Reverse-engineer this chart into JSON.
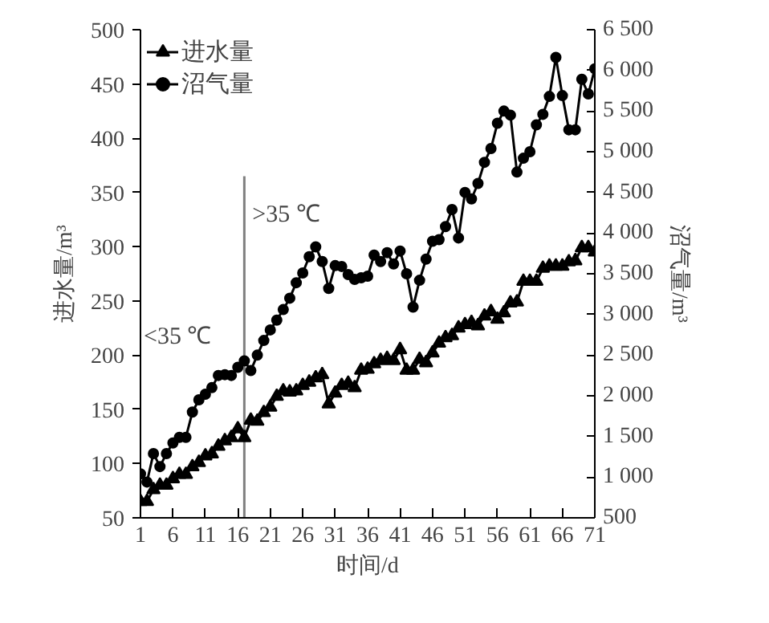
{
  "chart_data": {
    "type": "line",
    "xlabel": "时间/d",
    "ylabel": "进水量/m³",
    "y2label": "沼气量/m³",
    "x": [
      1,
      2,
      3,
      4,
      5,
      6,
      7,
      8,
      9,
      10,
      11,
      12,
      13,
      14,
      15,
      16,
      17,
      18,
      19,
      20,
      21,
      22,
      23,
      24,
      25,
      26,
      27,
      28,
      29,
      30,
      31,
      32,
      33,
      34,
      35,
      36,
      37,
      38,
      39,
      40,
      41,
      42,
      43,
      44,
      45,
      46,
      47,
      48,
      49,
      50,
      51,
      52,
      53,
      54,
      55,
      56,
      57,
      58,
      59,
      60,
      61,
      62,
      63,
      64,
      65,
      66,
      67,
      68,
      69,
      70,
      71
    ],
    "series": [
      {
        "name": "进水量",
        "color": "#000000",
        "marker": "triangle",
        "values": [
          65,
          65,
          76,
          80,
          80,
          86,
          90,
          90,
          97,
          101,
          107,
          109,
          116,
          121,
          124,
          132,
          124,
          140,
          139,
          147,
          152,
          162,
          167,
          166,
          167,
          172,
          175,
          179,
          182,
          155,
          165,
          172,
          174,
          170,
          186,
          187,
          192,
          195,
          197,
          195,
          205,
          186,
          186,
          196,
          193,
          202,
          211,
          216,
          218,
          225,
          228,
          230,
          227,
          236,
          240,
          233,
          239,
          248,
          249,
          268,
          268,
          268,
          280,
          282,
          282,
          282,
          286,
          287,
          299,
          299,
          295
        ]
      },
      {
        "name": "沼气量",
        "color": "#000000",
        "marker": "circle",
        "axis": "y2",
        "values": [
          1040,
          940,
          1290,
          1130,
          1290,
          1420,
          1490,
          1490,
          1800,
          1950,
          2020,
          2100,
          2250,
          2260,
          2250,
          2350,
          2430,
          2310,
          2500,
          2680,
          2810,
          2930,
          3060,
          3200,
          3390,
          3510,
          3710,
          3830,
          3650,
          3320,
          3600,
          3590,
          3490,
          3430,
          3450,
          3470,
          3730,
          3650,
          3760,
          3620,
          3780,
          3500,
          3090,
          3420,
          3680,
          3900,
          3920,
          4080,
          4290,
          3940,
          4500,
          4420,
          4610,
          4870,
          5040,
          5350,
          5500,
          5450,
          4750,
          4920,
          5000,
          5330,
          5460,
          5680,
          6160,
          5690,
          5270,
          5270,
          5890,
          5710,
          6020
        ]
      }
    ],
    "xlim": [
      1,
      71
    ],
    "xticks": [
      1,
      6,
      11,
      16,
      21,
      26,
      31,
      36,
      41,
      46,
      51,
      56,
      61,
      66,
      71
    ],
    "ylim": [
      50,
      500
    ],
    "yticks": [
      50,
      100,
      150,
      200,
      250,
      300,
      350,
      400,
      450,
      500
    ],
    "y2lim": [
      500,
      6500
    ],
    "y2ticks": [
      500,
      {
        "value": 1000,
        "label": "1 000"
      },
      {
        "value": 1500,
        "label": "1 500"
      },
      {
        "value": 2000,
        "label": "2 000"
      },
      {
        "value": 2500,
        "label": "2 500"
      },
      {
        "value": 3000,
        "label": "3 000"
      },
      {
        "value": 3500,
        "label": "3 500"
      },
      {
        "value": 4000,
        "label": "4 000"
      },
      {
        "value": 4500,
        "label": "4 500"
      },
      {
        "value": 5000,
        "label": "5 000"
      },
      {
        "value": 5500,
        "label": "5 500"
      },
      {
        "value": 6000,
        "label": "6 000"
      },
      {
        "value": 6500,
        "label": "6 500"
      }
    ],
    "ref_lines": [
      {
        "axis": "x",
        "value": 17,
        "color": "#808080"
      }
    ],
    "annotations": [
      "<35 ℃",
      ">35 ℃"
    ],
    "legend": "top left",
    "grid": false
  }
}
